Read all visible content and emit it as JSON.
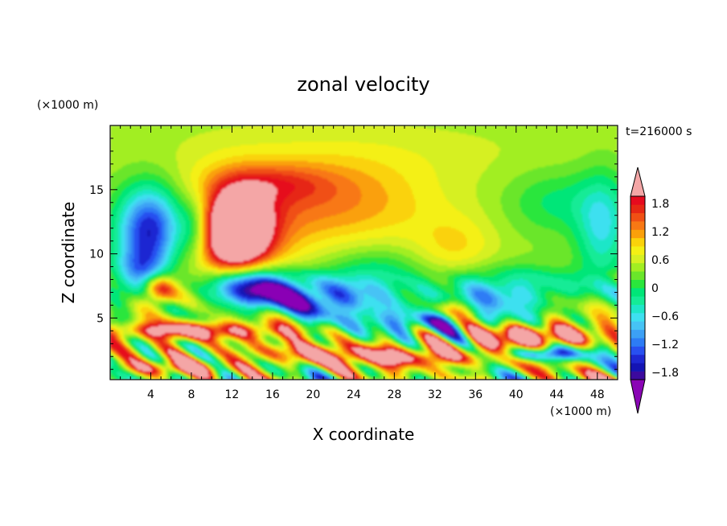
{
  "chart_data": {
    "type": "heatmap",
    "title": "zonal velocity",
    "xlabel": "X coordinate",
    "ylabel": "Z coordinate",
    "x_unit": "(×1000 m)",
    "y_unit": "(×1000 m)",
    "time_label": "t=216000 s",
    "xlim": [
      0,
      50
    ],
    "ylim": [
      0.2,
      20
    ],
    "x_ticks": [
      4,
      8,
      12,
      16,
      20,
      24,
      28,
      32,
      36,
      40,
      44,
      48
    ],
    "y_ticks": [
      5,
      10,
      15
    ],
    "colorbar": {
      "levels": [
        -2.1,
        -1.95,
        -1.8,
        -1.65,
        -1.5,
        -1.35,
        -1.2,
        -1.05,
        -0.9,
        -0.75,
        -0.6,
        -0.45,
        -0.3,
        -0.15,
        0,
        0.15,
        0.3,
        0.45,
        0.6,
        0.75,
        0.9,
        1.05,
        1.2,
        1.35,
        1.5,
        1.65,
        1.8,
        1.95,
        2.1
      ],
      "tick_values": [
        -1.8,
        -1.2,
        -0.6,
        0,
        0.6,
        1.2,
        1.8
      ],
      "tick_labels": [
        "−1.8",
        "−1.2",
        "−0.6",
        "0",
        "0.6",
        "1.2",
        "1.8"
      ],
      "colors": [
        "#8a05b5",
        "#3c0a9e",
        "#1414b4",
        "#1e28d2",
        "#2850f0",
        "#2d7cf5",
        "#3ca0f5",
        "#46c3f5",
        "#3ee0f0",
        "#1ee6c8",
        "#14eb96",
        "#00e678",
        "#2ae63c",
        "#6ae62a",
        "#a2ee22",
        "#d6f022",
        "#f4f014",
        "#fad20a",
        "#faa00a",
        "#f87814",
        "#f05014",
        "#e62814",
        "#e60a1e",
        "#f4a6a6"
      ]
    },
    "features": [
      {
        "x": 12.5,
        "z": 11.8,
        "sx": 3.0,
        "sz": 2.8,
        "u": 2.1
      },
      {
        "x": 12.0,
        "z": 11.5,
        "sx": 6.0,
        "sz": 4.5,
        "u": 0.8
      },
      {
        "x": 22.0,
        "z": 14.0,
        "sx": 10.0,
        "sz": 3.5,
        "u": 0.7
      },
      {
        "x": 4.0,
        "z": 12.0,
        "sx": 3.2,
        "sz": 3.2,
        "u": -1.8
      },
      {
        "x": 3.0,
        "z": 8.5,
        "sx": 2.5,
        "sz": 2.0,
        "u": -1.0
      },
      {
        "x": 8.5,
        "z": 12.0,
        "sx": 1.8,
        "sz": 2.5,
        "u": -0.8
      },
      {
        "x": 14.0,
        "z": 7.3,
        "sx": 4.5,
        "sz": 1.6,
        "u": -2.1
      },
      {
        "x": 21.0,
        "z": 6.5,
        "sx": 6.0,
        "sz": 1.5,
        "u": -1.4
      },
      {
        "x": 30.0,
        "z": 4.8,
        "sx": 6.0,
        "sz": 1.2,
        "u": -1.2
      },
      {
        "x": 4.8,
        "z": 7.2,
        "sx": 1.6,
        "sz": 1.2,
        "u": 1.4
      },
      {
        "x": 8.0,
        "z": 4.0,
        "sx": 9.0,
        "sz": 0.7,
        "u": 1.6
      },
      {
        "x": 24.0,
        "z": 2.2,
        "sx": 12.0,
        "sz": 0.9,
        "u": 1.2
      },
      {
        "x": 31.0,
        "z": 1.8,
        "sx": 6.0,
        "sz": 0.7,
        "u": 0.8
      },
      {
        "x": 6.0,
        "z": 1.1,
        "sx": 6.0,
        "sz": 0.6,
        "u": 1.1
      },
      {
        "x": 42.0,
        "z": 3.6,
        "sx": 5.5,
        "sz": 0.9,
        "u": 2.1
      },
      {
        "x": 42.5,
        "z": 2.2,
        "sx": 4.5,
        "sz": 0.6,
        "u": -1.6
      },
      {
        "x": 39.0,
        "z": 7.0,
        "sx": 7.0,
        "sz": 1.8,
        "u": -1.0
      },
      {
        "x": 48.5,
        "z": 12.0,
        "sx": 2.5,
        "sz": 4.0,
        "u": -0.8
      },
      {
        "x": 44.0,
        "z": 14.0,
        "sx": 5.0,
        "sz": 2.5,
        "u": -0.4
      },
      {
        "x": 26.0,
        "z": 8.5,
        "sx": 5.0,
        "sz": 2.0,
        "u": -0.5
      },
      {
        "x": 34.0,
        "z": 10.5,
        "sx": 4.0,
        "sz": 2.5,
        "u": 0.4
      },
      {
        "x": 25.0,
        "z": 18.0,
        "sx": 20.0,
        "sz": 2.5,
        "u": 0.15
      },
      {
        "x": 16.0,
        "z": 15.5,
        "sx": 6.0,
        "sz": 1.5,
        "u": 0.5
      },
      {
        "x": 33.0,
        "z": 5.6,
        "sx": 4.0,
        "sz": 0.7,
        "u": 0.7
      }
    ]
  }
}
